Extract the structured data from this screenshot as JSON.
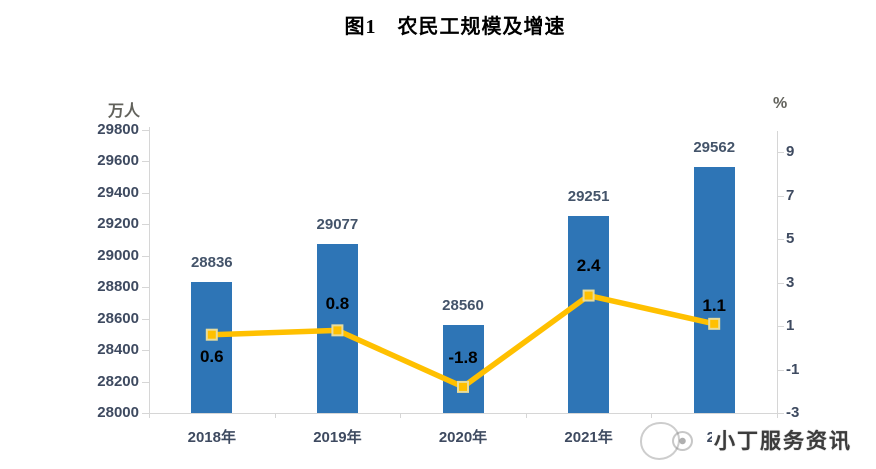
{
  "title": "图1　农民工规模及增速",
  "watermark": {
    "text": "小丁服务资讯",
    "logo": "scribble-face-logo"
  },
  "chart_data": {
    "type": "bar",
    "subtype": "bar-line-combo",
    "title": "图1　农民工规模及增速",
    "categories": [
      "2018年",
      "2019年",
      "2020年",
      "2021年",
      "2022年"
    ],
    "series": [
      {
        "name": "规模",
        "type": "bar",
        "axis": "left",
        "color": "#2e75b6",
        "label_color": "#44546a",
        "values": [
          28836,
          29077,
          28560,
          29251,
          29562
        ]
      },
      {
        "name": "增速",
        "type": "line",
        "axis": "right",
        "color": "#ffc000",
        "marker": "square",
        "marker_border": "#e8dc9c",
        "label_color": "#000000",
        "values": [
          0.6,
          0.8,
          -1.8,
          2.4,
          1.1
        ]
      }
    ],
    "left_axis": {
      "unit": "万人",
      "min": 28000,
      "max": 29800,
      "step": 200,
      "ticks": [
        29800,
        29600,
        29400,
        29200,
        29000,
        28800,
        28600,
        28400,
        28200,
        28000
      ]
    },
    "right_axis": {
      "unit": "%",
      "min": -3,
      "max": 9,
      "step": 2,
      "ticks": [
        9,
        7,
        5,
        3,
        1,
        -1,
        -3
      ]
    },
    "grid": false,
    "legend": "none"
  }
}
